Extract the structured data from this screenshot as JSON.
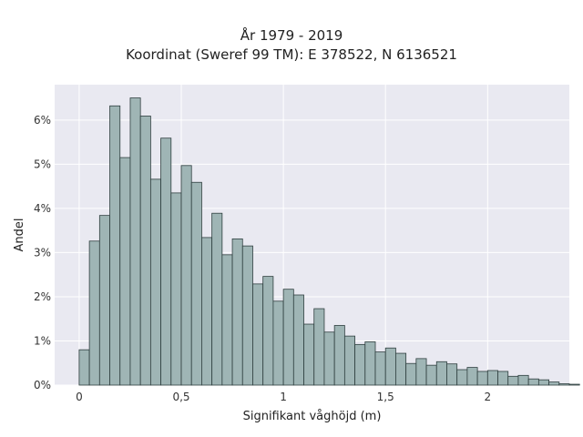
{
  "chart_data": {
    "type": "bar",
    "title": "År 1979 - 2019",
    "subtitle": "Koordinat (Sweref 99 TM): E 378522, N 6136521",
    "xlabel": "Signifikant våghöjd (m)",
    "ylabel": "Andel",
    "bin_width": 0.05,
    "bin_start": 0.0,
    "xlim": [
      -0.12,
      2.4
    ],
    "ylim": [
      0,
      6.8
    ],
    "x_ticks": [
      0,
      0.5,
      1,
      1.5,
      2
    ],
    "x_tick_labels": [
      "0",
      "0,5",
      "1",
      "1,5",
      "2"
    ],
    "y_ticks": [
      0,
      1,
      2,
      3,
      4,
      5,
      6
    ],
    "y_tick_labels": [
      "0%",
      "1%",
      "2%",
      "3%",
      "4%",
      "5%",
      "6%"
    ],
    "values": [
      0.8,
      3.26,
      3.84,
      6.32,
      5.15,
      6.5,
      6.09,
      4.66,
      5.59,
      4.35,
      4.97,
      4.59,
      3.34,
      3.89,
      2.95,
      3.31,
      3.15,
      2.29,
      2.46,
      1.9,
      2.17,
      2.04,
      1.38,
      1.73,
      1.2,
      1.35,
      1.11,
      0.92,
      0.98,
      0.75,
      0.84,
      0.72,
      0.49,
      0.6,
      0.45,
      0.53,
      0.48,
      0.35,
      0.4,
      0.31,
      0.33,
      0.31,
      0.2,
      0.22,
      0.14,
      0.12,
      0.07,
      0.03,
      0.02
    ],
    "grid": true,
    "colors": {
      "background": "#e9e9f1",
      "bar_fill": "#9fb5b5",
      "bar_stroke": "#2f3f3f",
      "grid": "#ffffff"
    }
  }
}
